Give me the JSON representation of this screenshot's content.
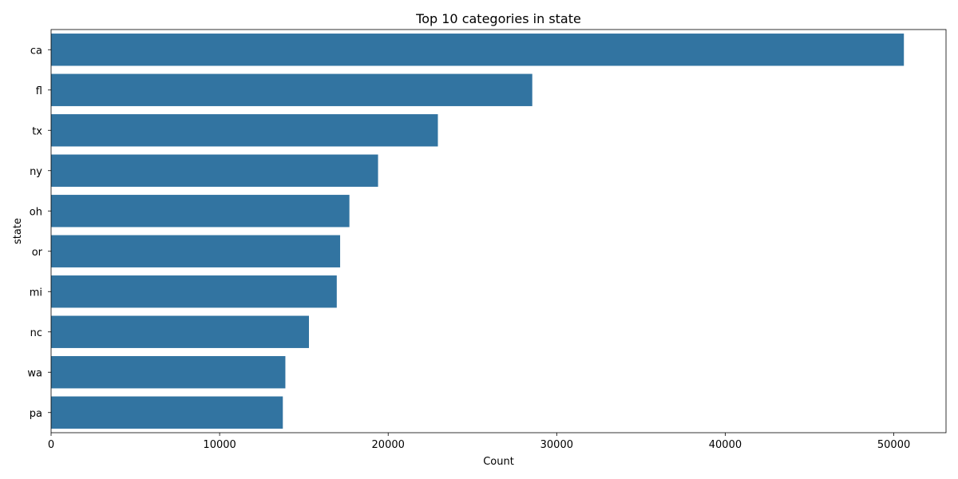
{
  "chart_data": {
    "type": "bar",
    "orientation": "horizontal",
    "title": "Top 10 categories in state",
    "xlabel": "Count",
    "ylabel": "state",
    "categories": [
      "ca",
      "fl",
      "tx",
      "ny",
      "oh",
      "or",
      "mi",
      "nc",
      "wa",
      "pa"
    ],
    "values": [
      50600,
      28550,
      22950,
      19400,
      17700,
      17150,
      16950,
      15300,
      13900,
      13750
    ],
    "xlim": [
      0,
      53100
    ],
    "xticks": [
      0,
      10000,
      20000,
      30000,
      40000,
      50000
    ],
    "xtick_labels": [
      "0",
      "10000",
      "20000",
      "30000",
      "40000",
      "50000"
    ],
    "grid": false,
    "bar_color": "#3274a1",
    "legend": "none"
  }
}
